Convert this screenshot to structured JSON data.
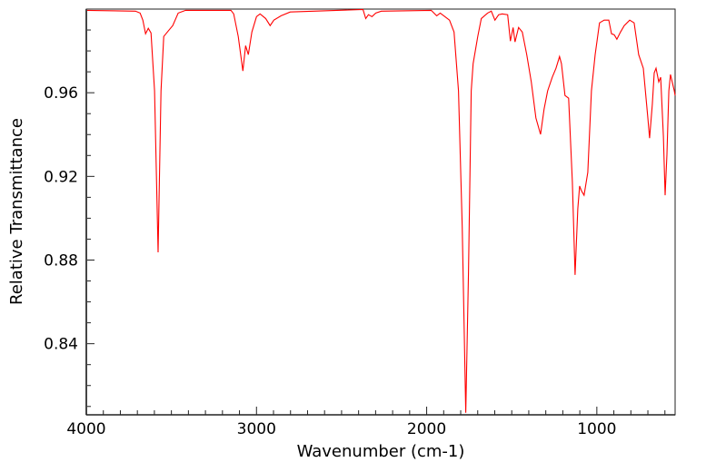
{
  "chart_data": {
    "type": "line",
    "title": "",
    "xlabel": "Wavenumber (cm-1)",
    "ylabel": "Relative Transmittance",
    "xlim": [
      4000,
      540
    ],
    "ylim": [
      0.806,
      1.0
    ],
    "x_reversed": true,
    "grid": false,
    "legend": "none",
    "xticks": [
      4000,
      3000,
      2000,
      1000
    ],
    "xtick_labels": [
      "4000",
      "3000",
      "2000",
      "1000"
    ],
    "x_minor_step": 100,
    "yticks": [
      0.84,
      0.88,
      0.92,
      0.96
    ],
    "ytick_labels": [
      "0.84",
      "0.88",
      "0.92",
      "0.96"
    ],
    "y_minor_step": 0.01,
    "series": [
      {
        "name": "spectrum",
        "color": "#ff0000",
        "x": [
          4000,
          3711,
          3684,
          3668,
          3652,
          3636,
          3620,
          3599,
          3578,
          3561,
          3545,
          3519,
          3492,
          3460,
          3417,
          3150,
          3134,
          3107,
          3080,
          3064,
          3048,
          3027,
          3000,
          2979,
          2946,
          2920,
          2898,
          2856,
          2802,
          2374,
          2358,
          2342,
          2321,
          2299,
          2267,
          1973,
          1941,
          1920,
          1893,
          1866,
          1839,
          1813,
          1791,
          1770,
          1754,
          1738,
          1727,
          1700,
          1679,
          1642,
          1620,
          1599,
          1577,
          1556,
          1524,
          1508,
          1492,
          1481,
          1460,
          1438,
          1412,
          1385,
          1358,
          1331,
          1310,
          1289,
          1262,
          1240,
          1219,
          1208,
          1187,
          1166,
          1144,
          1128,
          1112,
          1101,
          1091,
          1075,
          1053,
          1032,
          1010,
          984,
          957,
          930,
          914,
          898,
          882,
          861,
          839,
          807,
          781,
          754,
          727,
          700,
          690,
          674,
          663,
          652,
          636,
          625,
          609,
          599,
          588,
          577,
          567,
          545,
          540
        ],
        "y": [
          0.9994,
          0.999,
          0.9981,
          0.9947,
          0.9882,
          0.9908,
          0.9886,
          0.9609,
          0.8837,
          0.9609,
          0.9869,
          0.9895,
          0.9921,
          0.9981,
          0.9994,
          0.9994,
          0.9977,
          0.9869,
          0.9704,
          0.9825,
          0.9782,
          0.989,
          0.9964,
          0.9977,
          0.9955,
          0.9921,
          0.9947,
          0.9968,
          0.9986,
          0.9998,
          0.9955,
          0.9973,
          0.9964,
          0.9981,
          0.999,
          0.9994,
          0.9968,
          0.9981,
          0.9964,
          0.9947,
          0.989,
          0.9609,
          0.8959,
          0.807,
          0.8742,
          0.9609,
          0.9739,
          0.9869,
          0.9955,
          0.9981,
          0.999,
          0.9947,
          0.9973,
          0.9977,
          0.9973,
          0.9847,
          0.9912,
          0.9843,
          0.9912,
          0.989,
          0.9782,
          0.9652,
          0.9479,
          0.9401,
          0.9522,
          0.9609,
          0.9674,
          0.9717,
          0.9773,
          0.9739,
          0.9587,
          0.9574,
          0.9175,
          0.8729,
          0.9045,
          0.9154,
          0.9132,
          0.911,
          0.9219,
          0.9609,
          0.9782,
          0.9934,
          0.9947,
          0.9947,
          0.9882,
          0.9877,
          0.9856,
          0.989,
          0.9921,
          0.9947,
          0.9934,
          0.9782,
          0.9717,
          0.9479,
          0.9383,
          0.9544,
          0.9695,
          0.9717,
          0.9652,
          0.9674,
          0.9392,
          0.911,
          0.9305,
          0.9609,
          0.9687,
          0.9609,
          0.9587
        ]
      }
    ]
  }
}
